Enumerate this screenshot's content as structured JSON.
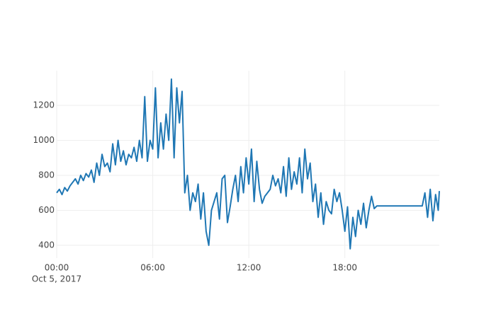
{
  "chart_data": {
    "type": "line",
    "x": [
      "2017-10-05 00:00",
      "2017-10-05 00:10",
      "2017-10-05 00:20",
      "2017-10-05 00:30",
      "2017-10-05 00:40",
      "2017-10-05 00:50",
      "2017-10-05 01:00",
      "2017-10-05 01:10",
      "2017-10-05 01:20",
      "2017-10-05 01:30",
      "2017-10-05 01:40",
      "2017-10-05 01:50",
      "2017-10-05 02:00",
      "2017-10-05 02:10",
      "2017-10-05 02:20",
      "2017-10-05 02:30",
      "2017-10-05 02:40",
      "2017-10-05 02:50",
      "2017-10-05 03:00",
      "2017-10-05 03:10",
      "2017-10-05 03:20",
      "2017-10-05 03:30",
      "2017-10-05 03:40",
      "2017-10-05 03:50",
      "2017-10-05 04:00",
      "2017-10-05 04:10",
      "2017-10-05 04:20",
      "2017-10-05 04:30",
      "2017-10-05 04:40",
      "2017-10-05 04:50",
      "2017-10-05 05:00",
      "2017-10-05 05:10",
      "2017-10-05 05:20",
      "2017-10-05 05:30",
      "2017-10-05 05:40",
      "2017-10-05 05:50",
      "2017-10-05 06:00",
      "2017-10-05 06:10",
      "2017-10-05 06:20",
      "2017-10-05 06:30",
      "2017-10-05 06:40",
      "2017-10-05 06:50",
      "2017-10-05 07:00",
      "2017-10-05 07:10",
      "2017-10-05 07:20",
      "2017-10-05 07:30",
      "2017-10-05 07:40",
      "2017-10-05 07:50",
      "2017-10-05 08:00",
      "2017-10-05 08:10",
      "2017-10-05 08:20",
      "2017-10-05 08:30",
      "2017-10-05 08:40",
      "2017-10-05 08:50",
      "2017-10-05 09:00",
      "2017-10-05 09:10",
      "2017-10-05 09:20",
      "2017-10-05 09:30",
      "2017-10-05 09:40",
      "2017-10-05 09:50",
      "2017-10-05 10:00",
      "2017-10-05 10:10",
      "2017-10-05 10:20",
      "2017-10-05 10:30",
      "2017-10-05 10:40",
      "2017-10-05 10:50",
      "2017-10-05 11:00",
      "2017-10-05 11:10",
      "2017-10-05 11:20",
      "2017-10-05 11:30",
      "2017-10-05 11:40",
      "2017-10-05 11:50",
      "2017-10-05 12:00",
      "2017-10-05 12:10",
      "2017-10-05 12:20",
      "2017-10-05 12:30",
      "2017-10-05 12:40",
      "2017-10-05 12:50",
      "2017-10-05 13:00",
      "2017-10-05 13:10",
      "2017-10-05 13:20",
      "2017-10-05 13:30",
      "2017-10-05 13:40",
      "2017-10-05 13:50",
      "2017-10-05 14:00",
      "2017-10-05 14:10",
      "2017-10-05 14:20",
      "2017-10-05 14:30",
      "2017-10-05 14:40",
      "2017-10-05 14:50",
      "2017-10-05 15:00",
      "2017-10-05 15:10",
      "2017-10-05 15:20",
      "2017-10-05 15:30",
      "2017-10-05 15:40",
      "2017-10-05 15:50",
      "2017-10-05 16:00",
      "2017-10-05 16:10",
      "2017-10-05 16:20",
      "2017-10-05 16:30",
      "2017-10-05 16:40",
      "2017-10-05 16:50",
      "2017-10-05 17:00",
      "2017-10-05 17:10",
      "2017-10-05 17:20",
      "2017-10-05 17:30",
      "2017-10-05 17:40",
      "2017-10-05 17:50",
      "2017-10-05 18:00",
      "2017-10-05 18:10",
      "2017-10-05 18:20",
      "2017-10-05 18:30",
      "2017-10-05 18:40",
      "2017-10-05 18:50",
      "2017-10-05 19:00",
      "2017-10-05 19:10",
      "2017-10-05 19:20",
      "2017-10-05 19:30",
      "2017-10-05 19:40",
      "2017-10-05 19:50",
      "2017-10-05 20:00",
      "2017-10-05 22:50",
      "2017-10-05 23:00",
      "2017-10-05 23:10",
      "2017-10-05 23:20",
      "2017-10-05 23:30",
      "2017-10-05 23:40",
      "2017-10-05 23:50",
      "2017-10-05 23:54"
    ],
    "series": [
      {
        "color": "#1f77b4",
        "values": [
          700,
          720,
          690,
          730,
          710,
          740,
          760,
          780,
          750,
          800,
          770,
          810,
          790,
          830,
          760,
          870,
          800,
          920,
          850,
          870,
          820,
          980,
          860,
          1000,
          880,
          940,
          860,
          920,
          900,
          960,
          880,
          1000,
          900,
          1250,
          880,
          1000,
          950,
          1300,
          900,
          1100,
          950,
          1150,
          1000,
          1350,
          900,
          1300,
          1100,
          1280,
          700,
          800,
          600,
          700,
          650,
          750,
          550,
          700,
          480,
          400,
          600,
          650,
          700,
          550,
          780,
          800,
          530,
          620,
          720,
          800,
          650,
          850,
          700,
          900,
          750,
          950,
          650,
          880,
          720,
          640,
          680,
          700,
          720,
          800,
          740,
          780,
          700,
          850,
          680,
          900,
          720,
          820,
          750,
          900,
          700,
          950,
          780,
          870,
          650,
          750,
          560,
          700,
          520,
          650,
          600,
          580,
          720,
          650,
          700,
          600,
          480,
          620,
          380,
          560,
          450,
          600,
          520,
          640,
          500,
          600,
          680,
          610,
          625,
          625,
          700,
          560,
          720,
          540,
          690,
          600,
          710
        ]
      }
    ],
    "xlim": [
      "2017-10-05 00:00",
      "2017-10-05 23:54"
    ],
    "xticks": [
      {
        "value": "2017-10-05 00:00",
        "label": "00:00"
      },
      {
        "value": "2017-10-05 06:00",
        "label": "06:00"
      },
      {
        "value": "2017-10-05 12:00",
        "label": "12:00"
      },
      {
        "value": "2017-10-05 18:00",
        "label": "18:00"
      }
    ],
    "x_date_label": "Oct 5, 2017",
    "ylim": [
      327,
      1398
    ],
    "yticks": [
      400,
      600,
      800,
      1000,
      1200
    ],
    "grid": true
  }
}
